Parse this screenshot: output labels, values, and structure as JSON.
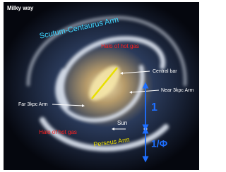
{
  "header": {
    "title": "Milky way"
  },
  "labels": {
    "scutum_centaurus_arm": "Scutum-Centaurus Arm",
    "halo_top": "Halo of hot gas",
    "central_bar": "Central bar",
    "far_3kpc_arm": "Far 3kpc Arm",
    "near_3kpc_arm": "Near 3kpc Arm",
    "halo_bottom": "Halo of hot gas",
    "sun": "Sun",
    "perseus_arm": "Perseus Arm",
    "ratio_one": "1",
    "ratio_phi": "1/Φ"
  }
}
